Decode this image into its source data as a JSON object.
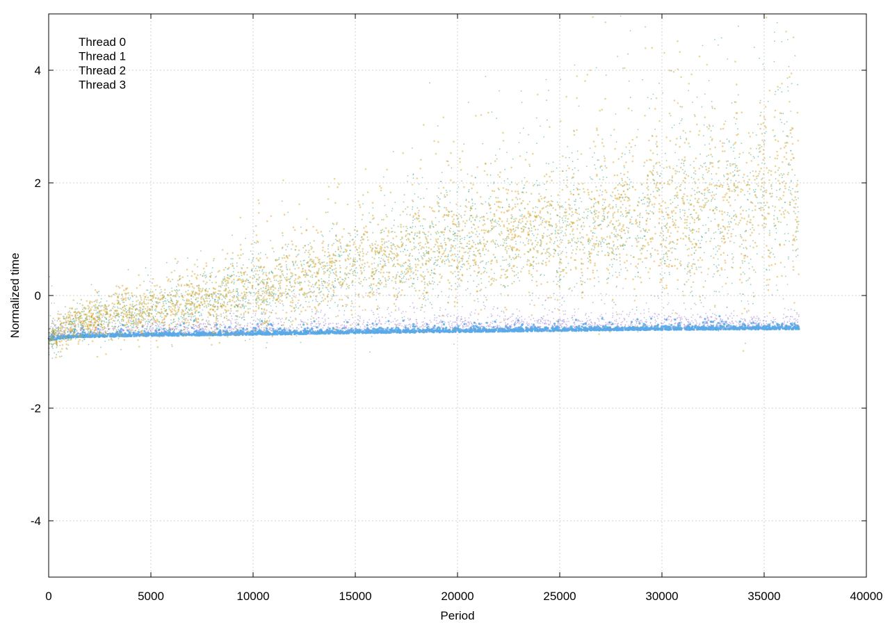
{
  "chart_data": {
    "type": "scatter",
    "title": "",
    "xlabel": "Period",
    "ylabel": "Normalized time",
    "xlim": [
      0,
      40000
    ],
    "ylim": [
      -5,
      5
    ],
    "x_ticks": [
      0,
      5000,
      10000,
      15000,
      20000,
      25000,
      30000,
      35000,
      40000
    ],
    "x_tick_labels": [
      "0",
      "5000",
      "10000",
      "15000",
      "20000",
      "25000",
      "30000",
      "35000",
      "40000"
    ],
    "y_ticks": [
      -4,
      -2,
      0,
      2,
      4
    ],
    "y_tick_labels": [
      "-4",
      "-2",
      "0",
      "2",
      "4"
    ],
    "grid": true,
    "legend_position": "top-left",
    "series": [
      {
        "name": "Thread 0",
        "color": "#9a7ad6",
        "x": [
          0,
          1000,
          2000,
          5000,
          10000,
          15000,
          20000,
          25000,
          30000,
          36700
        ],
        "y": [
          -0.8,
          -0.75,
          -0.75,
          -0.72,
          -0.7,
          -0.68,
          -0.65,
          -0.63,
          -0.62,
          -0.6
        ]
      },
      {
        "name": "Thread 1",
        "color": "#2a9d7a",
        "x": [
          0,
          1000,
          2000,
          5000,
          10000,
          15000,
          20000,
          25000,
          30000,
          36700
        ],
        "y": [
          -0.8,
          -0.55,
          -0.45,
          -0.3,
          0.0,
          0.4,
          0.8,
          1.0,
          1.2,
          1.5
        ]
      },
      {
        "name": "Thread 2",
        "color": "#d4a21f",
        "x": [
          0,
          1000,
          2000,
          5000,
          10000,
          15000,
          20000,
          25000,
          30000,
          36700
        ],
        "y": [
          -0.8,
          -0.55,
          -0.45,
          -0.3,
          0.0,
          0.4,
          0.8,
          1.0,
          1.2,
          1.5
        ]
      },
      {
        "name": "Thread 3",
        "color": "#5aa9e6",
        "x": [
          0,
          1000,
          2000,
          5000,
          10000,
          15000,
          20000,
          25000,
          30000,
          36700
        ],
        "y": [
          -0.8,
          -0.75,
          -0.74,
          -0.72,
          -0.7,
          -0.67,
          -0.65,
          -0.63,
          -0.61,
          -0.6
        ]
      }
    ]
  }
}
